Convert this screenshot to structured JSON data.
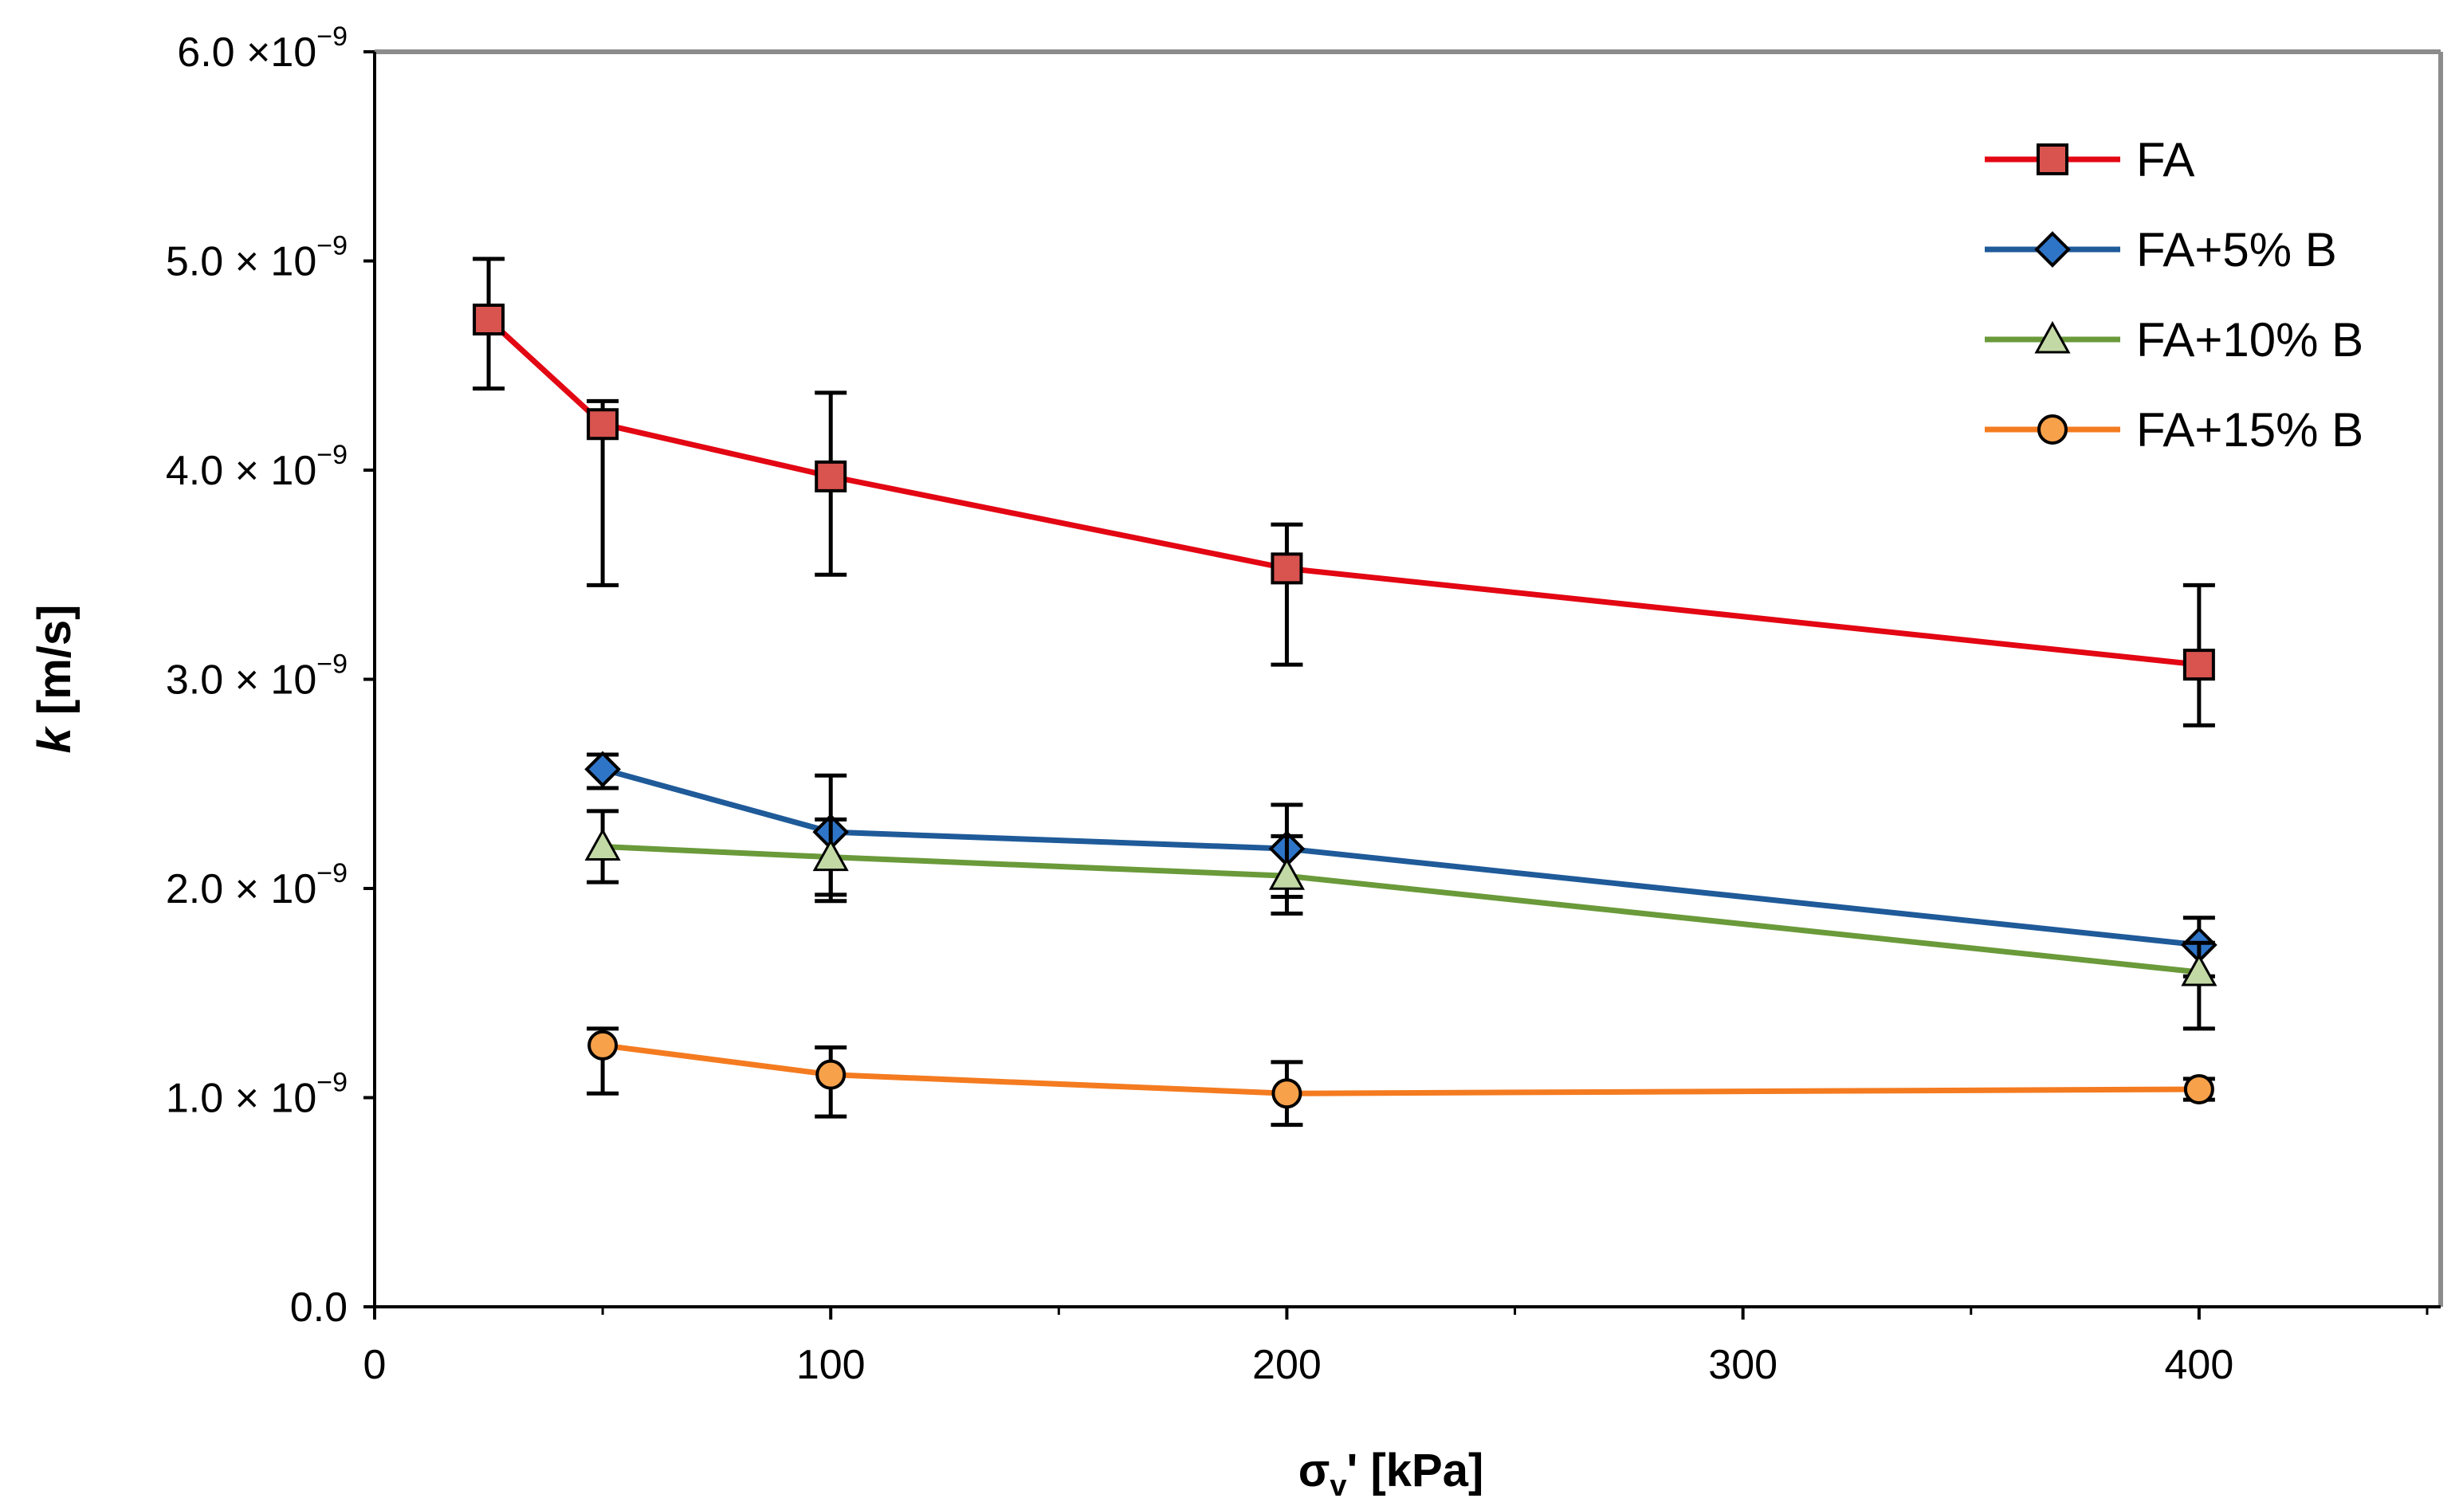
{
  "chart_data": {
    "type": "line",
    "title": "",
    "xlabel": {
      "main": "σ",
      "sub": "v",
      "rest": "' [kPa]"
    },
    "ylabel": {
      "italic": "k",
      "rest": " [m/s]"
    },
    "xlim": [
      0,
      450
    ],
    "ylim": [
      0,
      6e-09
    ],
    "x_ticks": [
      0,
      100,
      200,
      300,
      400
    ],
    "x_tick_labels": [
      "0",
      "100",
      "200",
      "300",
      "400"
    ],
    "x_minor_ticks": [
      50,
      150,
      250,
      350,
      450
    ],
    "y_ticks": [
      0,
      1e-09,
      2e-09,
      3e-09,
      4e-09,
      5e-09,
      6e-09
    ],
    "y_tick_labels": [
      {
        "mant": "0.0",
        "exp": ""
      },
      {
        "mant": "1.0 × 10",
        "exp": "−9"
      },
      {
        "mant": "2.0 × 10",
        "exp": "−9"
      },
      {
        "mant": "3.0 × 10",
        "exp": "−9"
      },
      {
        "mant": "4.0 × 10",
        "exp": "−9"
      },
      {
        "mant": "5.0 × 10",
        "exp": "−9"
      },
      {
        "mant": "6.0 ×10",
        "exp": "−9"
      }
    ],
    "legend_position": "top-right",
    "series": [
      {
        "name": "FA",
        "color": "#E30613",
        "marker": "square",
        "marker_fill": "#D9534F",
        "x": [
          25,
          50,
          100,
          200,
          400
        ],
        "y": [
          4.72e-09,
          4.22e-09,
          3.97e-09,
          3.53e-09,
          3.07e-09
        ],
        "err_low": [
          4.39e-09,
          3.45e-09,
          3.5e-09,
          3.07e-09,
          2.78e-09
        ],
        "err_high": [
          5.01e-09,
          4.33e-09,
          4.37e-09,
          3.74e-09,
          3.45e-09
        ]
      },
      {
        "name": "FA+5% B",
        "color": "#1F5A99",
        "marker": "diamond",
        "marker_fill": "#2E75C8",
        "x": [
          50,
          100,
          200,
          400
        ],
        "y": [
          2.57e-09,
          2.27e-09,
          2.19e-09,
          1.73e-09
        ],
        "err_low": [
          2.48e-09,
          1.97e-09,
          1.96e-09,
          1.58e-09
        ],
        "err_high": [
          2.64e-09,
          2.54e-09,
          2.4e-09,
          1.86e-09
        ]
      },
      {
        "name": "FA+10% B",
        "color": "#6A9A3A",
        "marker": "triangle",
        "marker_fill": "#C3D9A5",
        "x": [
          50,
          100,
          200,
          400
        ],
        "y": [
          2.2e-09,
          2.15e-09,
          2.06e-09,
          1.6e-09
        ],
        "err_low": [
          2.03e-09,
          1.94e-09,
          1.88e-09,
          1.33e-09
        ],
        "err_high": [
          2.37e-09,
          2.33e-09,
          2.25e-09,
          1.74e-09
        ]
      },
      {
        "name": "FA+15% B",
        "color": "#F47B20",
        "marker": "circle",
        "marker_fill": "#F7A14A",
        "x": [
          50,
          100,
          200,
          400
        ],
        "y": [
          1.25e-09,
          1.11e-09,
          1.02e-09,
          1.04e-09
        ],
        "err_low": [
          1.02e-09,
          9.1e-10,
          8.7e-10,
          9.9e-10
        ],
        "err_high": [
          1.33e-09,
          1.24e-09,
          1.17e-09,
          1.09e-09
        ]
      }
    ]
  }
}
